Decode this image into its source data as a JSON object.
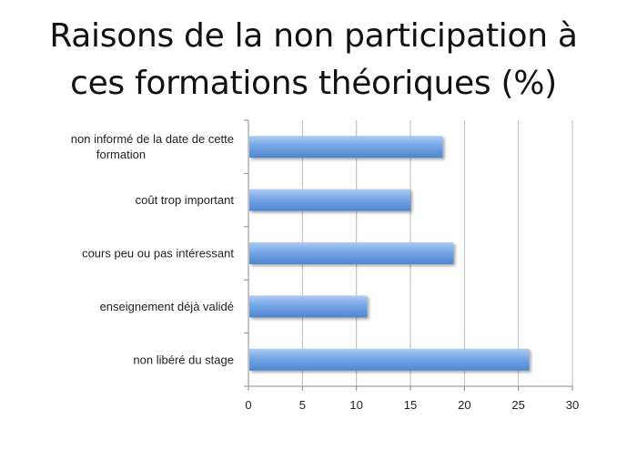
{
  "chart_data": {
    "type": "bar",
    "orientation": "horizontal",
    "title_lines": [
      "Raisons de la non participation à",
      "ces formations théoriques (%)"
    ],
    "categories": [
      [
        "non informé de la date de cette",
        "formation"
      ],
      [
        "coût trop important"
      ],
      [
        "cours peu ou pas intéressant"
      ],
      [
        "enseignement déjà validé"
      ],
      [
        "non libéré du stage"
      ]
    ],
    "values": [
      18,
      15,
      19,
      11,
      26
    ],
    "xlim": [
      0,
      30
    ],
    "xticks": [
      "0",
      "5",
      "10",
      "15",
      "20",
      "25",
      "30"
    ],
    "grid": true,
    "bar_color": "#74a7e6",
    "bar_color_light": "#aecbf2",
    "bar_color_dark": "#4f86cf"
  }
}
